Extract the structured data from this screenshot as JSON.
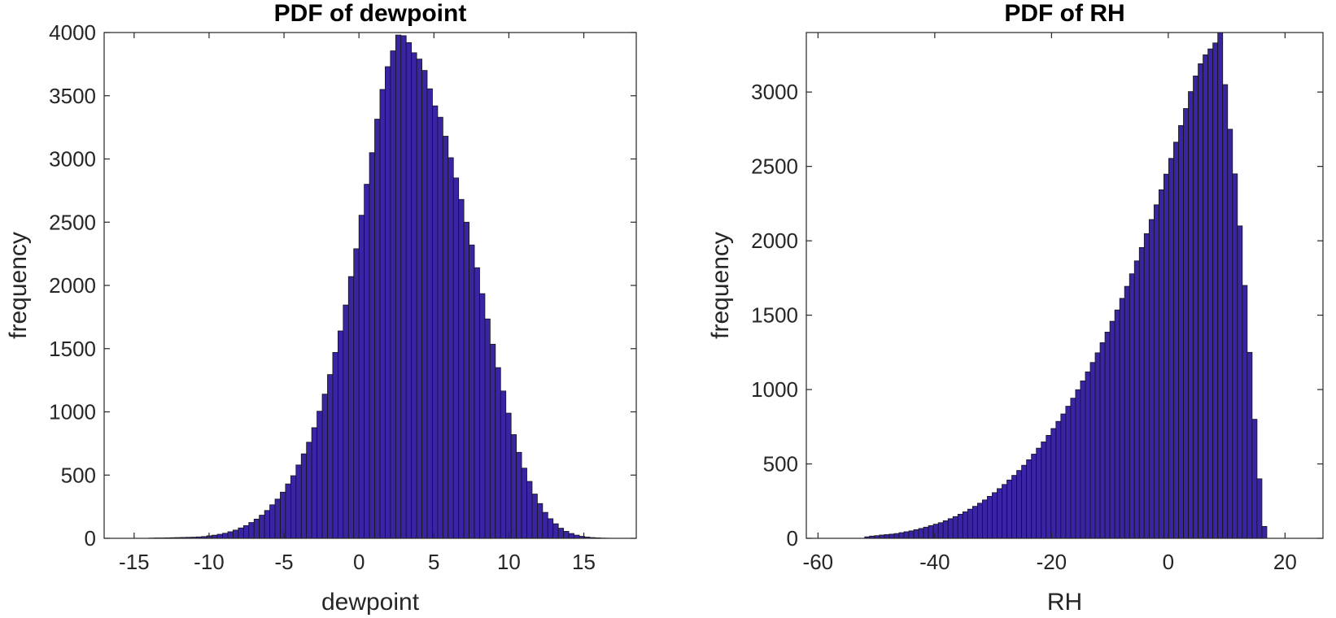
{
  "chart_data": [
    {
      "type": "bar",
      "title": "PDF of dewpoint",
      "xlabel": "dewpoint",
      "ylabel": "frequency",
      "xlim": [
        -17,
        18.5
      ],
      "ylim": [
        0,
        4000
      ],
      "xticks": [
        "-15",
        "-10",
        "-5",
        "0",
        "5",
        "10",
        "15"
      ],
      "yticks": [
        "0",
        "500",
        "1000",
        "1500",
        "2000",
        "2500",
        "3000",
        "3500",
        "4000"
      ],
      "bin_start": -14,
      "bin_width": 0.35,
      "values": [
        2,
        3,
        3,
        4,
        5,
        6,
        7,
        8,
        9,
        11,
        14,
        20,
        25,
        32,
        40,
        52,
        65,
        82,
        100,
        125,
        152,
        183,
        220,
        265,
        310,
        365,
        430,
        495,
        580,
        668,
        760,
        875,
        1005,
        1140,
        1295,
        1470,
        1640,
        1845,
        2070,
        2290,
        2555,
        2800,
        3050,
        3315,
        3550,
        3730,
        3855,
        3980,
        3975,
        3920,
        3840,
        3790,
        3700,
        3555,
        3420,
        3330,
        3180,
        3010,
        2850,
        2680,
        2500,
        2320,
        2140,
        1935,
        1735,
        1535,
        1350,
        1165,
        990,
        820,
        680,
        555,
        450,
        350,
        275,
        205,
        155,
        115,
        80,
        55,
        38,
        25,
        16,
        10,
        6,
        4,
        2,
        1
      ],
      "bar_color": "#3A24A4"
    },
    {
      "type": "bar",
      "title": "PDF of RH",
      "xlabel": "RH",
      "ylabel": "frequency",
      "xlim": [
        -62,
        26.5
      ],
      "ylim": [
        0,
        3400
      ],
      "xticks": [
        "-60",
        "-40",
        "-20",
        "0",
        "20"
      ],
      "yticks": [
        "0",
        "500",
        "1000",
        "1500",
        "2000",
        "2500",
        "3000"
      ],
      "bin_start": -52,
      "bin_width": 0.84,
      "values": [
        10,
        15,
        18,
        22,
        25,
        28,
        32,
        38,
        44,
        50,
        58,
        66,
        75,
        85,
        95,
        105,
        118,
        132,
        146,
        162,
        178,
        196,
        215,
        236,
        258,
        282,
        307,
        334,
        362,
        392,
        423,
        456,
        491,
        528,
        566,
        606,
        648,
        692,
        738,
        786,
        836,
        888,
        942,
        999,
        1058,
        1119,
        1182,
        1247,
        1315,
        1386,
        1459,
        1535,
        1613,
        1694,
        1778,
        1865,
        1955,
        2048,
        2143,
        2242,
        2343,
        2448,
        2554,
        2663,
        2775,
        2889,
        3003,
        3108,
        3190,
        3250,
        3290,
        3330,
        3400,
        3050,
        2750,
        2450,
        2100,
        1700,
        1250,
        800,
        400,
        80
      ],
      "bar_color": "#3A24A4"
    }
  ]
}
